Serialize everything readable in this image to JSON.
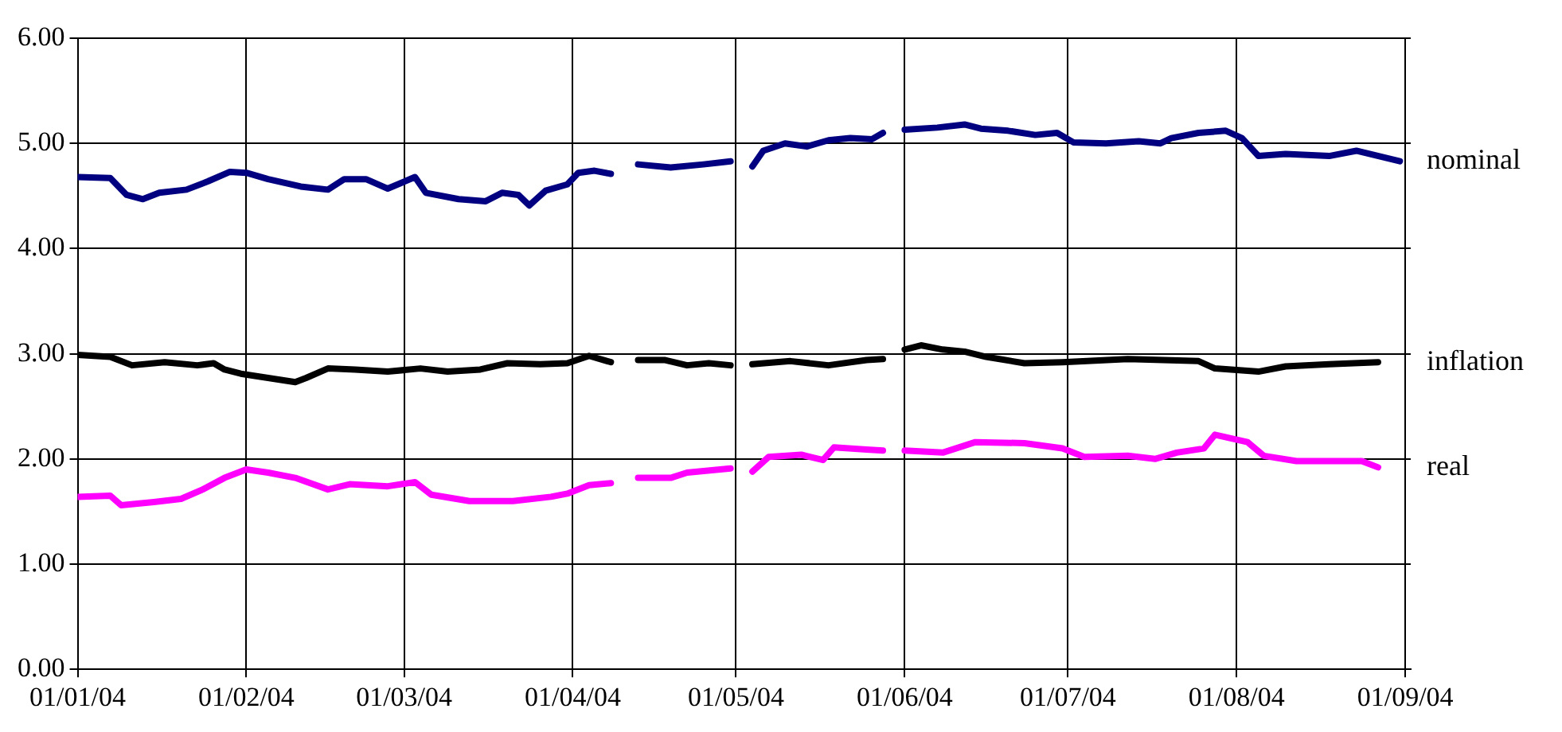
{
  "chart_data": {
    "type": "line",
    "ylim": [
      0,
      6
    ],
    "yticks": [
      {
        "value": 0,
        "label": "0.00"
      },
      {
        "value": 1,
        "label": "1.00"
      },
      {
        "value": 2,
        "label": "2.00"
      },
      {
        "value": 3,
        "label": "3.00"
      },
      {
        "value": 4,
        "label": "4.00"
      },
      {
        "value": 5,
        "label": "5.00"
      },
      {
        "value": 6,
        "label": "6.00"
      }
    ],
    "xlim": [
      "2004-01-01",
      "2004-09-02"
    ],
    "xticks": [
      {
        "value": "2004-01-01",
        "label": "01/01/04"
      },
      {
        "value": "2004-02-01",
        "label": "01/02/04"
      },
      {
        "value": "2004-03-01",
        "label": "01/03/04"
      },
      {
        "value": "2004-04-01",
        "label": "01/04/04"
      },
      {
        "value": "2004-05-01",
        "label": "01/05/04"
      },
      {
        "value": "2004-06-01",
        "label": "01/06/04"
      },
      {
        "value": "2004-07-01",
        "label": "01/07/04"
      },
      {
        "value": "2004-08-01",
        "label": "01/08/04"
      },
      {
        "value": "2004-09-01",
        "label": "01/09/04"
      }
    ],
    "grid": true,
    "legend": false,
    "marker": "none",
    "line_style": "solid",
    "series": [
      {
        "name": "nominal",
        "color": "#000080",
        "x": [
          "2004-01-01",
          "2004-01-07",
          "2004-01-10",
          "2004-01-13",
          "2004-01-16",
          "2004-01-21",
          "2004-01-25",
          "2004-01-29",
          "2004-02-01",
          "2004-02-05",
          "2004-02-11",
          "2004-02-16",
          "2004-02-19",
          "2004-02-23",
          "2004-02-27",
          "2004-03-03",
          "2004-03-05",
          "2004-03-11",
          "2004-03-16",
          "2004-03-19",
          "2004-03-22",
          "2004-03-24",
          "2004-03-27",
          "2004-03-31",
          "2004-04-02",
          "2004-04-05",
          "2004-04-08",
          "2004-04-11",
          "2004-04-13",
          "2004-04-19",
          "2004-04-25",
          "2004-04-30",
          "2004-05-01",
          "2004-05-04",
          "2004-05-06",
          "2004-05-10",
          "2004-05-14",
          "2004-05-18",
          "2004-05-22",
          "2004-05-26",
          "2004-05-28",
          "2004-05-30",
          "2004-06-01",
          "2004-06-07",
          "2004-06-12",
          "2004-06-15",
          "2004-06-20",
          "2004-06-25",
          "2004-06-29",
          "2004-07-02",
          "2004-07-08",
          "2004-07-14",
          "2004-07-18",
          "2004-07-20",
          "2004-07-25",
          "2004-07-30",
          "2004-08-02",
          "2004-08-05",
          "2004-08-10",
          "2004-08-18",
          "2004-08-23",
          "2004-08-31"
        ],
        "values": [
          4.68,
          4.67,
          4.51,
          4.47,
          4.53,
          4.56,
          4.64,
          4.73,
          4.72,
          4.66,
          4.59,
          4.56,
          4.66,
          4.66,
          4.57,
          4.68,
          4.53,
          4.47,
          4.45,
          4.53,
          4.51,
          4.41,
          4.55,
          4.61,
          4.72,
          4.74,
          4.71,
          null,
          4.8,
          4.77,
          4.8,
          4.83,
          null,
          4.78,
          4.93,
          5.0,
          4.97,
          5.03,
          5.05,
          5.04,
          5.1,
          null,
          5.13,
          5.15,
          5.18,
          5.14,
          5.12,
          5.08,
          5.1,
          5.01,
          5.0,
          5.02,
          5.0,
          5.05,
          5.1,
          5.12,
          5.05,
          4.88,
          4.9,
          4.88,
          4.93,
          4.83
        ]
      },
      {
        "name": "inflation",
        "color": "#000000",
        "x": [
          "2004-01-01",
          "2004-01-07",
          "2004-01-11",
          "2004-01-17",
          "2004-01-23",
          "2004-01-26",
          "2004-01-28",
          "2004-01-31",
          "2004-02-05",
          "2004-02-10",
          "2004-02-12",
          "2004-02-16",
          "2004-02-21",
          "2004-02-27",
          "2004-03-04",
          "2004-03-09",
          "2004-03-15",
          "2004-03-20",
          "2004-03-26",
          "2004-03-31",
          "2004-04-04",
          "2004-04-08",
          "2004-04-11",
          "2004-04-13",
          "2004-04-18",
          "2004-04-22",
          "2004-04-26",
          "2004-04-30",
          "2004-05-01",
          "2004-05-04",
          "2004-05-11",
          "2004-05-18",
          "2004-05-25",
          "2004-05-28",
          "2004-05-30",
          "2004-06-01",
          "2004-06-04",
          "2004-06-08",
          "2004-06-12",
          "2004-06-16",
          "2004-06-23",
          "2004-06-30",
          "2004-07-12",
          "2004-07-25",
          "2004-07-28",
          "2004-08-05",
          "2004-08-10",
          "2004-08-18",
          "2004-08-27"
        ],
        "values": [
          2.99,
          2.97,
          2.89,
          2.92,
          2.89,
          2.91,
          2.85,
          2.81,
          2.77,
          2.73,
          2.77,
          2.86,
          2.85,
          2.83,
          2.86,
          2.83,
          2.85,
          2.91,
          2.9,
          2.91,
          2.98,
          2.92,
          null,
          2.94,
          2.94,
          2.89,
          2.91,
          2.89,
          null,
          2.9,
          2.93,
          2.89,
          2.94,
          2.95,
          null,
          3.04,
          3.08,
          3.04,
          3.02,
          2.97,
          2.91,
          2.92,
          2.95,
          2.93,
          2.86,
          2.83,
          2.88,
          2.9,
          2.92
        ]
      },
      {
        "name": "real",
        "color": "#ff00ff",
        "x": [
          "2004-01-01",
          "2004-01-07",
          "2004-01-09",
          "2004-01-15",
          "2004-01-20",
          "2004-01-24",
          "2004-01-28",
          "2004-02-01",
          "2004-02-05",
          "2004-02-10",
          "2004-02-16",
          "2004-02-20",
          "2004-02-27",
          "2004-03-03",
          "2004-03-06",
          "2004-03-13",
          "2004-03-21",
          "2004-03-28",
          "2004-03-31",
          "2004-04-04",
          "2004-04-08",
          "2004-04-11",
          "2004-04-13",
          "2004-04-19",
          "2004-04-22",
          "2004-04-30",
          "2004-05-01",
          "2004-05-04",
          "2004-05-07",
          "2004-05-13",
          "2004-05-17",
          "2004-05-19",
          "2004-05-25",
          "2004-05-28",
          "2004-05-30",
          "2004-06-01",
          "2004-06-08",
          "2004-06-14",
          "2004-06-23",
          "2004-06-30",
          "2004-07-04",
          "2004-07-12",
          "2004-07-17",
          "2004-07-21",
          "2004-07-26",
          "2004-07-28",
          "2004-08-03",
          "2004-08-06",
          "2004-08-12",
          "2004-08-24",
          "2004-08-27"
        ],
        "values": [
          1.64,
          1.65,
          1.56,
          1.59,
          1.62,
          1.71,
          1.82,
          1.9,
          1.87,
          1.82,
          1.71,
          1.76,
          1.74,
          1.78,
          1.66,
          1.6,
          1.6,
          1.64,
          1.67,
          1.75,
          1.77,
          null,
          1.82,
          1.82,
          1.87,
          1.91,
          null,
          1.88,
          2.02,
          2.04,
          1.99,
          2.11,
          2.09,
          2.08,
          null,
          2.08,
          2.06,
          2.16,
          2.15,
          2.1,
          2.02,
          2.03,
          2.0,
          2.06,
          2.1,
          2.23,
          2.16,
          2.03,
          1.98,
          1.98,
          1.92
        ]
      }
    ]
  }
}
